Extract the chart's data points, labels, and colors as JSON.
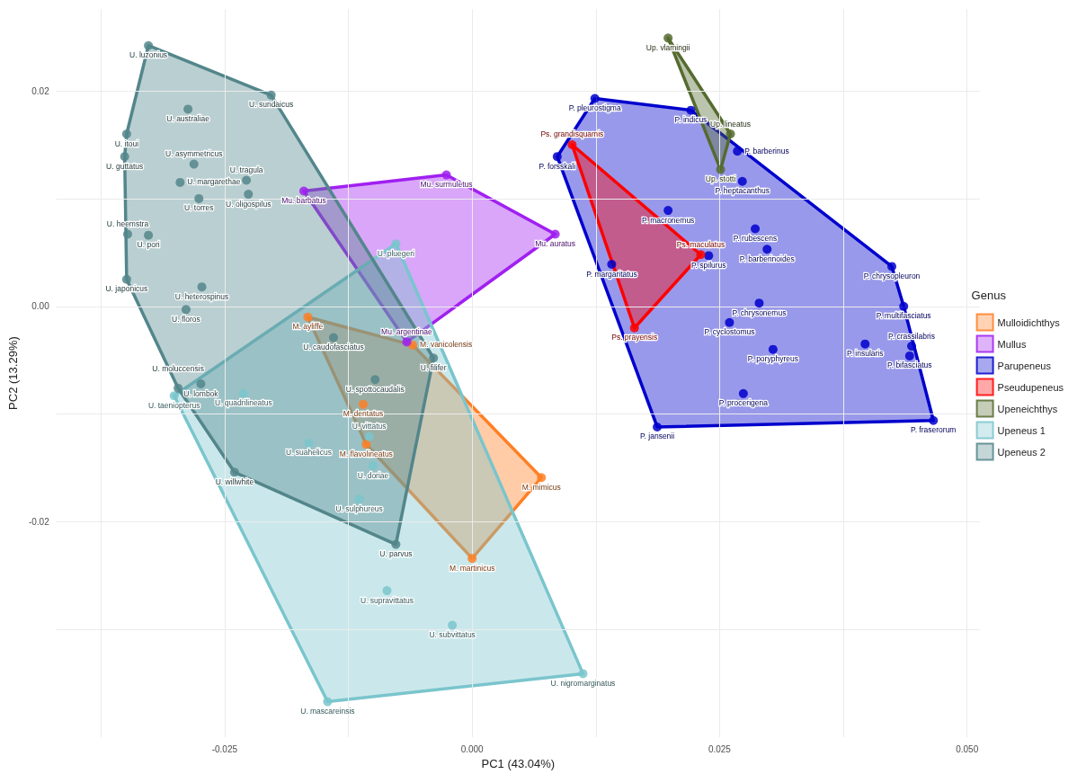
{
  "chart_data": {
    "type": "scatter",
    "xlabel": "PC1 (43.04%)",
    "ylabel": "PC2 (13.29%)",
    "legend_title": "Genus",
    "legend": "right",
    "grid": true,
    "marker": "circle",
    "xlim": [
      -0.042,
      0.0513
    ],
    "ylim": [
      -0.04,
      0.0276
    ],
    "xticks": [
      {
        "value": -0.0375,
        "label": null
      },
      {
        "value": -0.025,
        "label": "-0.025"
      },
      {
        "value": -0.0125,
        "label": null
      },
      {
        "value": 0,
        "label": "0.000"
      },
      {
        "value": 0.0125,
        "label": null
      },
      {
        "value": 0.025,
        "label": "0.025"
      },
      {
        "value": 0.0375,
        "label": null
      },
      {
        "value": 0.05,
        "label": "0.050"
      }
    ],
    "yticks": [
      {
        "value": -0.03,
        "label": null
      },
      {
        "value": -0.02,
        "label": "-0.02"
      },
      {
        "value": -0.01,
        "label": null
      },
      {
        "value": 0,
        "label": "0.00"
      },
      {
        "value": 0.01,
        "label": null
      },
      {
        "value": 0.02,
        "label": "0.02"
      }
    ],
    "series": [
      {
        "name": "Mulloidichthys",
        "color": "#ff7f24",
        "x": [
          -0.0166,
          -0.006,
          -0.011,
          -0.0107,
          0.007,
          0.0
        ],
        "values": [
          -0.001,
          -0.0036,
          -0.0091,
          -0.0128,
          -0.0159,
          -0.0234
        ]
      },
      {
        "name": "Mullus",
        "color": "#a020f0",
        "x": [
          -0.017,
          -0.0026,
          0.0084,
          -0.0066
        ],
        "values": [
          0.0107,
          0.0122,
          0.0067,
          -0.0033
        ]
      },
      {
        "name": "Parupeneus",
        "color": "#0000cd",
        "x": [
          0.0124,
          0.0221,
          0.0086,
          0.0198,
          0.0141,
          0.0239,
          0.0187,
          0.0268,
          0.0273,
          0.0286,
          0.0298,
          0.0424,
          0.0436,
          0.029,
          0.026,
          0.0304,
          0.0397,
          0.0444,
          0.0442,
          0.0274,
          0.0466
        ],
        "values": [
          0.0193,
          0.0182,
          0.0139,
          0.0089,
          0.0039,
          0.0047,
          -0.0112,
          0.0144,
          0.0116,
          0.0072,
          0.0053,
          0.0037,
          0.0,
          0.0003,
          -0.0015,
          -0.004,
          -0.0035,
          -0.0037,
          -0.0046,
          -0.0081,
          -0.0106
        ]
      },
      {
        "name": "Pseudupeneus",
        "color": "#ff0000",
        "x": [
          0.0101,
          0.0231,
          0.0164
        ],
        "values": [
          0.015,
          0.0048,
          -0.002
        ]
      },
      {
        "name": "Upeneichthys",
        "color": "#556b2f",
        "x": [
          0.0198,
          0.0261,
          0.0251
        ],
        "values": [
          0.0249,
          0.016,
          0.0127
        ]
      },
      {
        "name": "Upeneus 1",
        "color": "#7ac5cd",
        "x": [
          -0.0301,
          -0.0231,
          -0.0165,
          -0.0104,
          -0.01,
          -0.0114,
          -0.0077,
          -0.0086,
          -0.002,
          -0.0146,
          0.0112
        ],
        "values": [
          -0.0083,
          -0.0081,
          -0.0127,
          -0.0121,
          -0.0148,
          -0.0179,
          0.0058,
          -0.0264,
          -0.0296,
          -0.0367,
          -0.0341
        ]
      },
      {
        "name": "Upeneus 2",
        "color": "#53868b",
        "x": [
          -0.0327,
          -0.0203,
          -0.0287,
          -0.0349,
          -0.0351,
          -0.0281,
          -0.0228,
          -0.0226,
          -0.0295,
          -0.0276,
          -0.0348,
          -0.0327,
          -0.0349,
          -0.0273,
          -0.0289,
          -0.0297,
          -0.0274,
          -0.014,
          -0.0098,
          -0.024,
          -0.0077,
          -0.0039
        ],
        "values": [
          0.0242,
          0.0196,
          0.0183,
          0.016,
          0.0139,
          0.0132,
          0.0117,
          0.0104,
          0.0115,
          0.01,
          0.0067,
          0.0066,
          0.0025,
          0.0018,
          -0.0003,
          -0.0076,
          -0.0072,
          -0.0029,
          -0.0068,
          -0.0154,
          -0.0221,
          -0.0048
        ]
      }
    ],
    "annotations": [
      {
        "text": "M. ayliffe",
        "x": -0.0166,
        "y": -0.001
      },
      {
        "text": "M. vanicolensis",
        "x": -0.006,
        "y": -0.0036
      },
      {
        "text": "M. dentatus",
        "x": -0.011,
        "y": -0.0091
      },
      {
        "text": "M. flavolineatus",
        "x": -0.0107,
        "y": -0.0128
      },
      {
        "text": "M. mimicus",
        "x": 0.007,
        "y": -0.0159
      },
      {
        "text": "M. martinicus",
        "x": 0.0,
        "y": -0.0234
      },
      {
        "text": "Mu. barbatus",
        "x": -0.017,
        "y": 0.0107
      },
      {
        "text": "Mu. surmuletus",
        "x": -0.0026,
        "y": 0.0122
      },
      {
        "text": "Mu. auratus",
        "x": 0.0084,
        "y": 0.0067
      },
      {
        "text": "Mu. argentinae",
        "x": -0.0066,
        "y": -0.0033
      },
      {
        "text": "P. pleurostigma",
        "x": 0.0124,
        "y": 0.0193
      },
      {
        "text": "P. indicus",
        "x": 0.0221,
        "y": 0.0182
      },
      {
        "text": "P. forsskali",
        "x": 0.0086,
        "y": 0.0139
      },
      {
        "text": "P. macronemus",
        "x": 0.0198,
        "y": 0.0089
      },
      {
        "text": "P. margaritatus",
        "x": 0.0141,
        "y": 0.0039
      },
      {
        "text": "P. spilurus",
        "x": 0.0239,
        "y": 0.0047
      },
      {
        "text": "P. jansenii",
        "x": 0.0187,
        "y": -0.0112
      },
      {
        "text": "P. barberinus",
        "x": 0.0268,
        "y": 0.0144
      },
      {
        "text": "P. heptacanthus",
        "x": 0.0273,
        "y": 0.0116
      },
      {
        "text": "P. rubescens",
        "x": 0.0286,
        "y": 0.0072
      },
      {
        "text": "P. barberinoides",
        "x": 0.0298,
        "y": 0.0053
      },
      {
        "text": "P. chrysopleuron",
        "x": 0.0424,
        "y": 0.0037
      },
      {
        "text": "P. multifasciatus",
        "x": 0.0436,
        "y": 0.0
      },
      {
        "text": "P. chrysonemus",
        "x": 0.029,
        "y": 0.0003
      },
      {
        "text": "P. cyclostomus",
        "x": 0.026,
        "y": -0.0015
      },
      {
        "text": "P. poryphyreus",
        "x": 0.0304,
        "y": -0.004
      },
      {
        "text": "P. insularis",
        "x": 0.0397,
        "y": -0.0035
      },
      {
        "text": "P. crassilabris",
        "x": 0.0444,
        "y": -0.0037
      },
      {
        "text": "P. bifasciatus",
        "x": 0.0442,
        "y": -0.0046
      },
      {
        "text": "P. procerigena",
        "x": 0.0274,
        "y": -0.0081
      },
      {
        "text": "P. fraserorum",
        "x": 0.0466,
        "y": -0.0106
      },
      {
        "text": "Ps. grandisquamis",
        "x": 0.0101,
        "y": 0.015
      },
      {
        "text": "Ps. maculatus",
        "x": 0.0231,
        "y": 0.0048
      },
      {
        "text": "Ps. prayensis",
        "x": 0.0164,
        "y": -0.002
      },
      {
        "text": "Up. vlamingii",
        "x": 0.0198,
        "y": 0.0249
      },
      {
        "text": "Up. lineatus",
        "x": 0.0261,
        "y": 0.016
      },
      {
        "text": "Up. stotti",
        "x": 0.0251,
        "y": 0.0127
      },
      {
        "text": "U. taeniopterus",
        "x": -0.0301,
        "y": -0.0083
      },
      {
        "text": "U. quadrilineatus",
        "x": -0.0231,
        "y": -0.0081
      },
      {
        "text": "U. suahelicus",
        "x": -0.0165,
        "y": -0.0127
      },
      {
        "text": "U. vittatus",
        "x": -0.0104,
        "y": -0.0121
      },
      {
        "text": "U. doriae",
        "x": -0.01,
        "y": -0.0148
      },
      {
        "text": "U. sulphureus",
        "x": -0.0114,
        "y": -0.0179
      },
      {
        "text": "U. pluegeri",
        "x": -0.0077,
        "y": 0.0058
      },
      {
        "text": "U. supravittatus",
        "x": -0.0086,
        "y": -0.0264
      },
      {
        "text": "U. subvittatus",
        "x": -0.002,
        "y": -0.0296
      },
      {
        "text": "U. mascareinsis",
        "x": -0.0146,
        "y": -0.0367
      },
      {
        "text": "U. nigromarginatus",
        "x": 0.0112,
        "y": -0.0341
      },
      {
        "text": "U. luzonius",
        "x": -0.0327,
        "y": 0.0242
      },
      {
        "text": "U. sundaicus",
        "x": -0.0203,
        "y": 0.0196
      },
      {
        "text": "U. australiae",
        "x": -0.0287,
        "y": 0.0183
      },
      {
        "text": "U. itoui",
        "x": -0.0349,
        "y": 0.016
      },
      {
        "text": "U. guttatus",
        "x": -0.0351,
        "y": 0.0139
      },
      {
        "text": "U. asymmetricus",
        "x": -0.0281,
        "y": 0.0132
      },
      {
        "text": "U. tragula",
        "x": -0.0228,
        "y": 0.0117
      },
      {
        "text": "U. oligospilus",
        "x": -0.0226,
        "y": 0.0104
      },
      {
        "text": "U. margarethae",
        "x": -0.0295,
        "y": 0.0115
      },
      {
        "text": "U. torres",
        "x": -0.0276,
        "y": 0.01
      },
      {
        "text": "U. heemstra",
        "x": -0.0348,
        "y": 0.0067
      },
      {
        "text": "U. pori",
        "x": -0.0327,
        "y": 0.0066
      },
      {
        "text": "U. japonicus",
        "x": -0.0349,
        "y": 0.0025
      },
      {
        "text": "U. heterospinus",
        "x": -0.0273,
        "y": 0.0018
      },
      {
        "text": "U. floros",
        "x": -0.0289,
        "y": -0.0003
      },
      {
        "text": "U. moluccensis",
        "x": -0.0297,
        "y": -0.0076
      },
      {
        "text": "U. lombok",
        "x": -0.0274,
        "y": -0.0072
      },
      {
        "text": "U. caudofasciatus",
        "x": -0.014,
        "y": -0.0029
      },
      {
        "text": "U. spottocaudalis",
        "x": -0.0098,
        "y": -0.0068
      },
      {
        "text": "U. willwhite",
        "x": -0.024,
        "y": -0.0154
      },
      {
        "text": "U. parvus",
        "x": -0.0077,
        "y": -0.0221
      },
      {
        "text": "U. filifer",
        "x": -0.0039,
        "y": -0.0048
      }
    ]
  }
}
